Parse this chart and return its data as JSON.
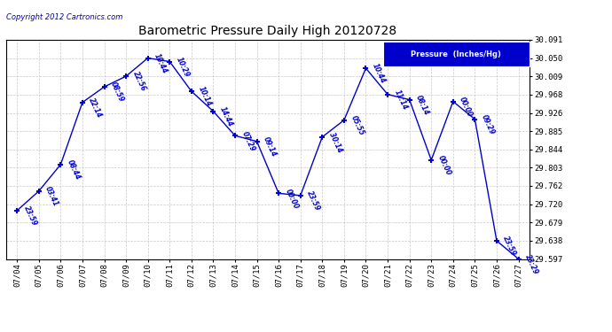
{
  "title": "Barometric Pressure Daily High 20120728",
  "copyright": "Copyright 2012 Cartronics.com",
  "legend_label": "Pressure  (Inches/Hg)",
  "x_labels": [
    "07/04",
    "07/05",
    "07/06",
    "07/07",
    "07/08",
    "07/09",
    "07/10",
    "07/11",
    "07/12",
    "07/13",
    "07/14",
    "07/15",
    "07/16",
    "07/17",
    "07/18",
    "07/19",
    "07/20",
    "07/21",
    "07/22",
    "07/23",
    "07/24",
    "07/25",
    "07/26",
    "07/27"
  ],
  "y_values": [
    29.706,
    29.75,
    29.81,
    29.95,
    29.985,
    30.009,
    30.05,
    30.042,
    29.975,
    29.93,
    29.875,
    29.862,
    29.745,
    29.74,
    29.872,
    29.91,
    30.027,
    29.968,
    29.956,
    29.82,
    29.952,
    29.912,
    29.638,
    29.597
  ],
  "time_labels": [
    "23:59",
    "03:41",
    "08:44",
    "22:14",
    "08:59",
    "22:56",
    "10:44",
    "10:29",
    "10:14",
    "14:44",
    "07:29",
    "09:14",
    "00:00",
    "23:59",
    "30:14",
    "05:55",
    "10:44",
    "11:14",
    "08:14",
    "00:00",
    "00:00",
    "09:29",
    "23:59",
    "23:29"
  ],
  "ylim_min": 29.597,
  "ylim_max": 30.091,
  "yticks": [
    30.091,
    30.05,
    30.009,
    29.968,
    29.926,
    29.885,
    29.844,
    29.803,
    29.762,
    29.72,
    29.679,
    29.638,
    29.597
  ],
  "line_color": "#0000cc",
  "marker_color": "#0000cc",
  "bg_color": "#ffffff",
  "grid_color": "#bbbbbb",
  "title_color": "#000000",
  "copyright_color": "#0000bb",
  "legend_bg": "#0000cc",
  "legend_text": "#ffffff"
}
